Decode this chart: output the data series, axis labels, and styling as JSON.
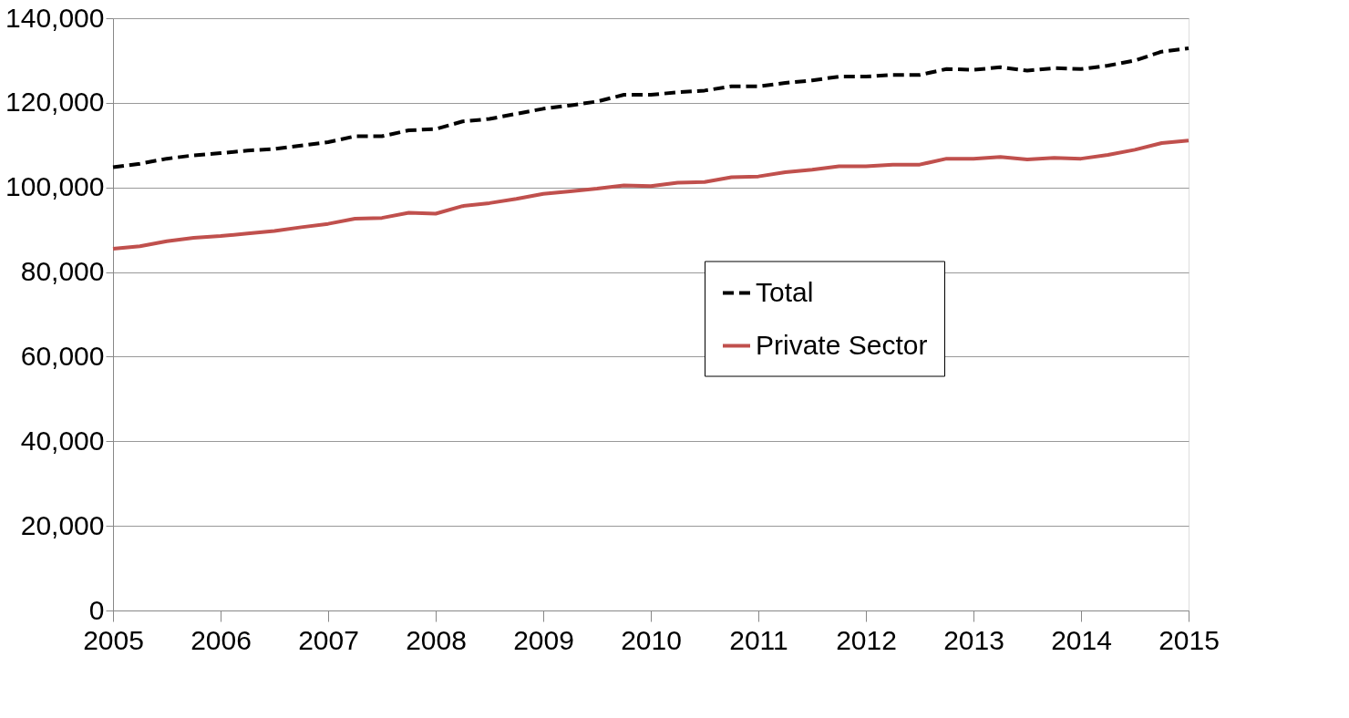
{
  "chart_data": {
    "type": "line",
    "x": [
      2005,
      2005.25,
      2005.5,
      2005.75,
      2006,
      2006.25,
      2006.5,
      2006.75,
      2007,
      2007.25,
      2007.5,
      2007.75,
      2008,
      2008.25,
      2008.5,
      2008.75,
      2009,
      2009.25,
      2009.5,
      2009.75,
      2010,
      2010.25,
      2010.5,
      2010.75,
      2011,
      2011.25,
      2011.5,
      2011.75,
      2012,
      2012.25,
      2012.5,
      2012.75,
      2013,
      2013.25,
      2013.5,
      2013.75,
      2014,
      2014.25,
      2014.5,
      2014.75,
      2015
    ],
    "series": [
      {
        "name": "Total",
        "color": "#000000",
        "line_style": "dashed",
        "values": [
          104800,
          105600,
          106800,
          107600,
          108100,
          108700,
          109100,
          109900,
          110700,
          112100,
          112100,
          113500,
          113800,
          115600,
          116200,
          117400,
          118600,
          119400,
          120300,
          121900,
          121900,
          122500,
          122900,
          123900,
          123900,
          124700,
          125300,
          126200,
          126200,
          126600,
          126600,
          128000,
          127800,
          128400,
          127600,
          128200,
          128000,
          128800,
          130000,
          132100,
          132900
        ]
      },
      {
        "name": "Private Sector",
        "color": "#c0504d",
        "line_style": "solid",
        "values": [
          85500,
          86100,
          87300,
          88100,
          88500,
          89100,
          89700,
          90600,
          91400,
          92600,
          92800,
          94000,
          93800,
          95600,
          96300,
          97300,
          98500,
          99100,
          99700,
          100500,
          100300,
          101100,
          101300,
          102400,
          102600,
          103600,
          104200,
          105000,
          105000,
          105400,
          105400,
          106800,
          106800,
          107200,
          106600,
          107000,
          106800,
          107700,
          108900,
          110500,
          111100
        ]
      }
    ],
    "xlim": [
      2005,
      2015
    ],
    "xticks": [
      2005,
      2006,
      2007,
      2008,
      2009,
      2010,
      2011,
      2012,
      2013,
      2014,
      2015
    ],
    "ylim": [
      0,
      140000
    ],
    "yticks": [
      0,
      {
        "value": 20000,
        "label": "20,000"
      },
      {
        "value": 40000,
        "label": "40,000"
      },
      {
        "value": 60000,
        "label": "60,000"
      },
      {
        "value": 80000,
        "label": "80,000"
      },
      {
        "value": 100000,
        "label": "100,000"
      },
      {
        "value": 120000,
        "label": "120,000"
      },
      {
        "value": 140000,
        "label": "140,000"
      }
    ],
    "grid": "y",
    "legend": "right"
  }
}
